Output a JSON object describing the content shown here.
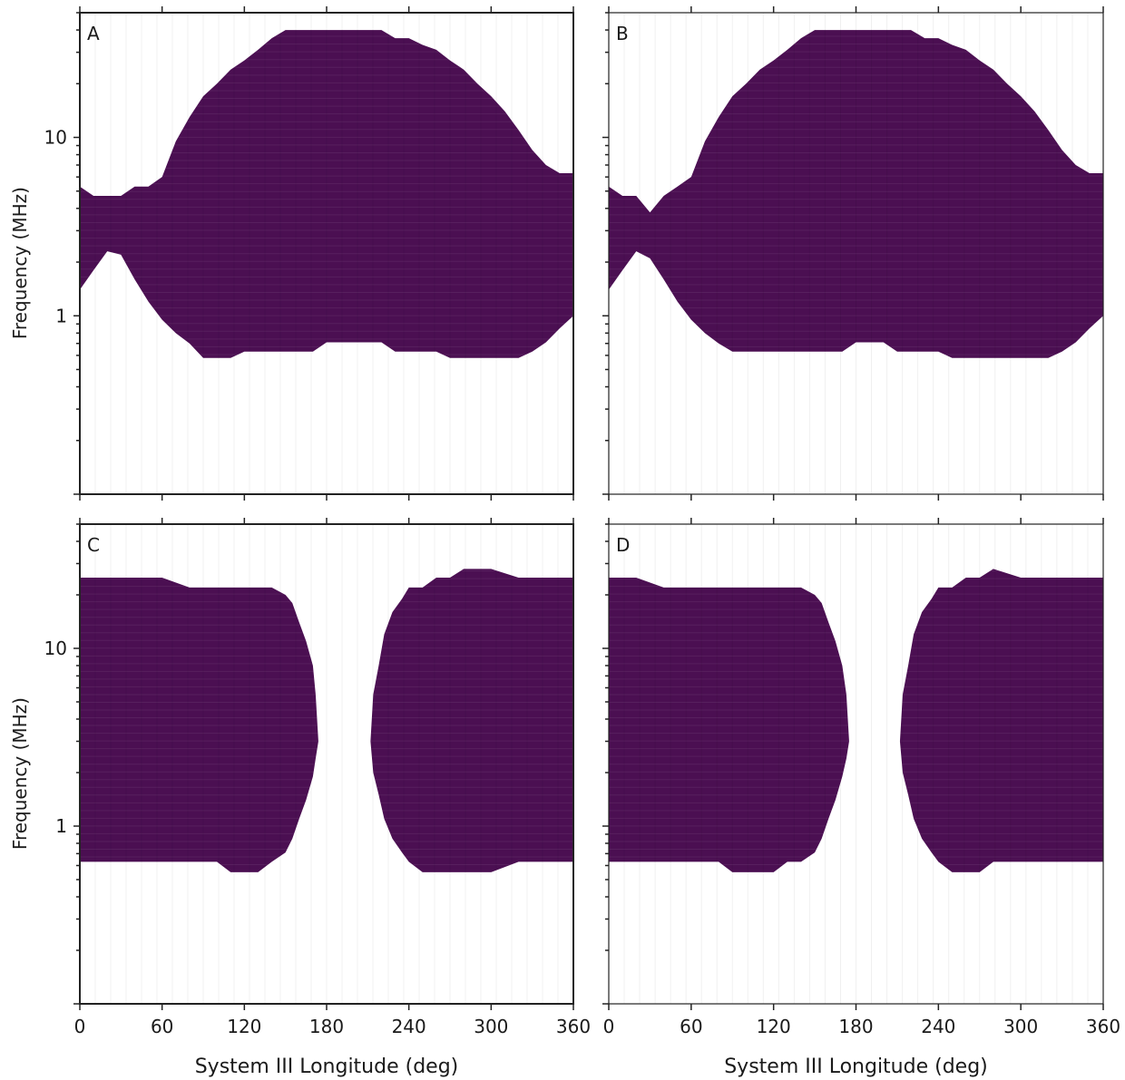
{
  "figure": {
    "fill_color": "#4b0f52",
    "x_axis_label": "System III Longitude (deg)",
    "y_axis_label": "Frequency (MHz)"
  },
  "chart_data": [
    {
      "panel": "A",
      "type": "heatmap",
      "xlabel": "",
      "ylabel": "Frequency (MHz)",
      "xlim": [
        0,
        360
      ],
      "ylim": [
        0.1,
        50
      ],
      "yscale": "log",
      "x_ticks": [],
      "y_ticks": [
        "1",
        "10"
      ],
      "region_boundary": {
        "lon": [
          0,
          10,
          20,
          30,
          40,
          50,
          60,
          70,
          80,
          90,
          100,
          110,
          120,
          130,
          140,
          150,
          160,
          170,
          180,
          190,
          200,
          210,
          220,
          230,
          240,
          250,
          260,
          270,
          280,
          290,
          300,
          310,
          320,
          330,
          340,
          350,
          360
        ],
        "f_low": [
          1.4,
          1.8,
          2.3,
          2.2,
          1.6,
          1.2,
          0.95,
          0.8,
          0.7,
          0.58,
          0.58,
          0.58,
          0.63,
          0.63,
          0.63,
          0.63,
          0.63,
          0.63,
          0.71,
          0.71,
          0.71,
          0.71,
          0.71,
          0.63,
          0.63,
          0.63,
          0.63,
          0.58,
          0.58,
          0.58,
          0.58,
          0.58,
          0.58,
          0.63,
          0.71,
          0.85,
          1.0
        ],
        "f_high": [
          5.3,
          4.7,
          4.7,
          4.7,
          5.3,
          5.3,
          6.0,
          9.5,
          13,
          17,
          20,
          24,
          27,
          31,
          36,
          40,
          40,
          40,
          40,
          40,
          40,
          40,
          40,
          36,
          36,
          33,
          31,
          27,
          24,
          20,
          17,
          14,
          11,
          8.5,
          7.0,
          6.3,
          6.3
        ]
      }
    },
    {
      "panel": "B",
      "type": "heatmap",
      "xlabel": "",
      "ylabel": "",
      "xlim": [
        0,
        360
      ],
      "ylim": [
        0.1,
        50
      ],
      "yscale": "log",
      "x_ticks": [],
      "y_ticks": [],
      "region_boundary": {
        "lon": [
          0,
          10,
          20,
          30,
          40,
          50,
          60,
          70,
          80,
          90,
          100,
          110,
          120,
          130,
          140,
          150,
          160,
          170,
          180,
          190,
          200,
          210,
          220,
          230,
          240,
          250,
          260,
          270,
          280,
          290,
          300,
          310,
          320,
          330,
          340,
          350,
          360
        ],
        "f_low": [
          1.4,
          1.8,
          2.3,
          2.1,
          1.6,
          1.2,
          0.95,
          0.8,
          0.7,
          0.63,
          0.63,
          0.63,
          0.63,
          0.63,
          0.63,
          0.63,
          0.63,
          0.63,
          0.71,
          0.71,
          0.71,
          0.63,
          0.63,
          0.63,
          0.63,
          0.58,
          0.58,
          0.58,
          0.58,
          0.58,
          0.58,
          0.58,
          0.58,
          0.63,
          0.71,
          0.85,
          1.0
        ],
        "f_high": [
          5.3,
          4.7,
          4.7,
          3.8,
          4.7,
          5.3,
          6.0,
          9.5,
          13,
          17,
          20,
          24,
          27,
          31,
          36,
          40,
          40,
          40,
          40,
          40,
          40,
          40,
          40,
          36,
          36,
          33,
          31,
          27,
          24,
          20,
          17,
          14,
          11,
          8.5,
          7.0,
          6.3,
          6.3
        ]
      }
    },
    {
      "panel": "C",
      "type": "heatmap",
      "xlabel": "System III Longitude (deg)",
      "ylabel": "Frequency (MHz)",
      "xlim": [
        0,
        360
      ],
      "ylim": [
        0.1,
        50
      ],
      "yscale": "log",
      "x_ticks": [
        "0",
        "60",
        "120",
        "180",
        "240",
        "300",
        "360"
      ],
      "y_ticks": [
        "1",
        "10"
      ],
      "region_boundary_left": {
        "lon": [
          0,
          20,
          40,
          60,
          80,
          100,
          110,
          120,
          130,
          140,
          150,
          155,
          160,
          165,
          170,
          172,
          174
        ],
        "f_low": [
          0.63,
          0.63,
          0.63,
          0.63,
          0.63,
          0.63,
          0.55,
          0.55,
          0.55,
          0.63,
          0.71,
          0.85,
          1.1,
          1.4,
          1.9,
          2.4,
          3.0
        ],
        "f_high": [
          25,
          25,
          25,
          25,
          22,
          22,
          22,
          22,
          22,
          22,
          20,
          18,
          14,
          11,
          8,
          5.5,
          3.0
        ]
      },
      "region_boundary_right": {
        "lon": [
          212,
          214,
          218,
          222,
          228,
          235,
          240,
          250,
          260,
          270,
          280,
          300,
          320,
          340,
          360
        ],
        "f_low": [
          3.0,
          2.0,
          1.5,
          1.1,
          0.85,
          0.71,
          0.63,
          0.55,
          0.55,
          0.55,
          0.55,
          0.55,
          0.63,
          0.63,
          0.63
        ],
        "f_high": [
          3.0,
          5.5,
          8,
          12,
          16,
          19,
          22,
          22,
          25,
          25,
          28,
          28,
          25,
          25,
          25
        ]
      }
    },
    {
      "panel": "D",
      "type": "heatmap",
      "xlabel": "System III Longitude (deg)",
      "ylabel": "",
      "xlim": [
        0,
        360
      ],
      "ylim": [
        0.1,
        50
      ],
      "yscale": "log",
      "x_ticks": [
        "0",
        "60",
        "120",
        "180",
        "240",
        "300",
        "360"
      ],
      "y_ticks": [],
      "region_boundary_left": {
        "lon": [
          0,
          20,
          40,
          60,
          80,
          90,
          100,
          120,
          130,
          140,
          150,
          155,
          160,
          165,
          170,
          173,
          175
        ],
        "f_low": [
          0.63,
          0.63,
          0.63,
          0.63,
          0.63,
          0.55,
          0.55,
          0.55,
          0.63,
          0.63,
          0.71,
          0.85,
          1.1,
          1.4,
          1.9,
          2.4,
          3.0
        ],
        "f_high": [
          25,
          25,
          22,
          22,
          22,
          22,
          22,
          22,
          22,
          22,
          20,
          18,
          14,
          11,
          8,
          5.5,
          3.0
        ]
      },
      "region_boundary_right": {
        "lon": [
          212,
          214,
          218,
          222,
          228,
          235,
          240,
          250,
          260,
          270,
          280,
          300,
          320,
          340,
          360
        ],
        "f_low": [
          3.0,
          2.0,
          1.5,
          1.1,
          0.85,
          0.71,
          0.63,
          0.55,
          0.55,
          0.55,
          0.63,
          0.63,
          0.63,
          0.63,
          0.63
        ],
        "f_high": [
          3.0,
          5.5,
          8,
          12,
          16,
          19,
          22,
          22,
          25,
          25,
          28,
          25,
          25,
          25,
          25
        ]
      }
    }
  ]
}
